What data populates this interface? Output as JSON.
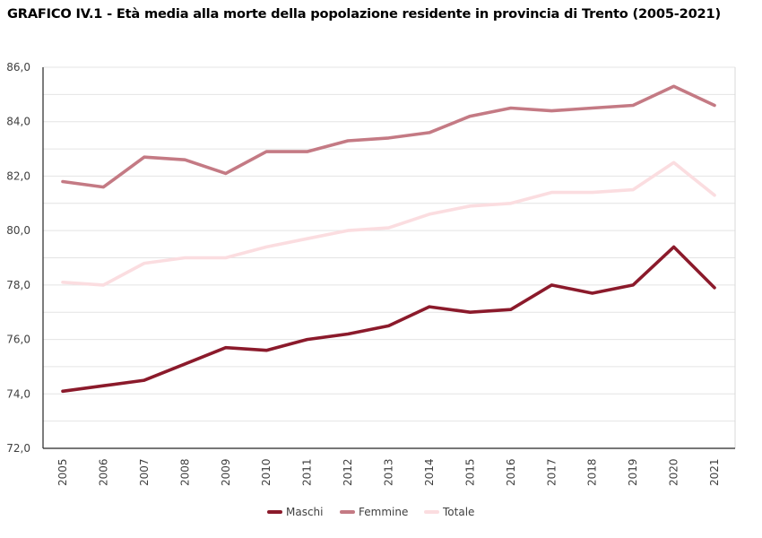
{
  "chart_data": {
    "type": "line",
    "title": "GRAFICO IV.1 - Età media alla morte della popolazione residente in provincia di Trento (2005-2021)",
    "xlabel": "",
    "ylabel": "",
    "x": [
      "2005",
      "2006",
      "2007",
      "2008",
      "2009",
      "2010",
      "2011",
      "2012",
      "2013",
      "2014",
      "2015",
      "2016",
      "2017",
      "2018",
      "2019",
      "2020",
      "2021"
    ],
    "ylim": [
      72,
      86
    ],
    "yticks": [
      72,
      74,
      76,
      78,
      80,
      82,
      84,
      86
    ],
    "ytick_labels": [
      "72,0",
      "74,0",
      "76,0",
      "78,0",
      "80,0",
      "82,0",
      "84,0",
      "86,0"
    ],
    "minor_grid_step": 1,
    "grid": true,
    "legend_position": "bottom",
    "series": [
      {
        "name": "Maschi",
        "color": "#8b1a2b",
        "values": [
          74.1,
          74.3,
          74.5,
          75.1,
          75.7,
          75.6,
          76.0,
          76.2,
          76.5,
          77.2,
          77.0,
          77.1,
          78.0,
          77.7,
          78.0,
          79.4,
          77.9
        ]
      },
      {
        "name": "Femmine",
        "color": "#c47a84",
        "values": [
          81.8,
          81.6,
          82.7,
          82.6,
          82.1,
          82.9,
          82.9,
          83.3,
          83.4,
          83.6,
          84.2,
          84.5,
          84.4,
          84.5,
          84.6,
          85.3,
          84.6
        ]
      },
      {
        "name": "Totale",
        "color": "#fbdde0",
        "values": [
          78.1,
          78.0,
          78.8,
          79.0,
          79.0,
          79.4,
          79.7,
          80.0,
          80.1,
          80.6,
          80.9,
          81.0,
          81.4,
          81.4,
          81.5,
          82.5,
          81.3
        ]
      }
    ]
  }
}
